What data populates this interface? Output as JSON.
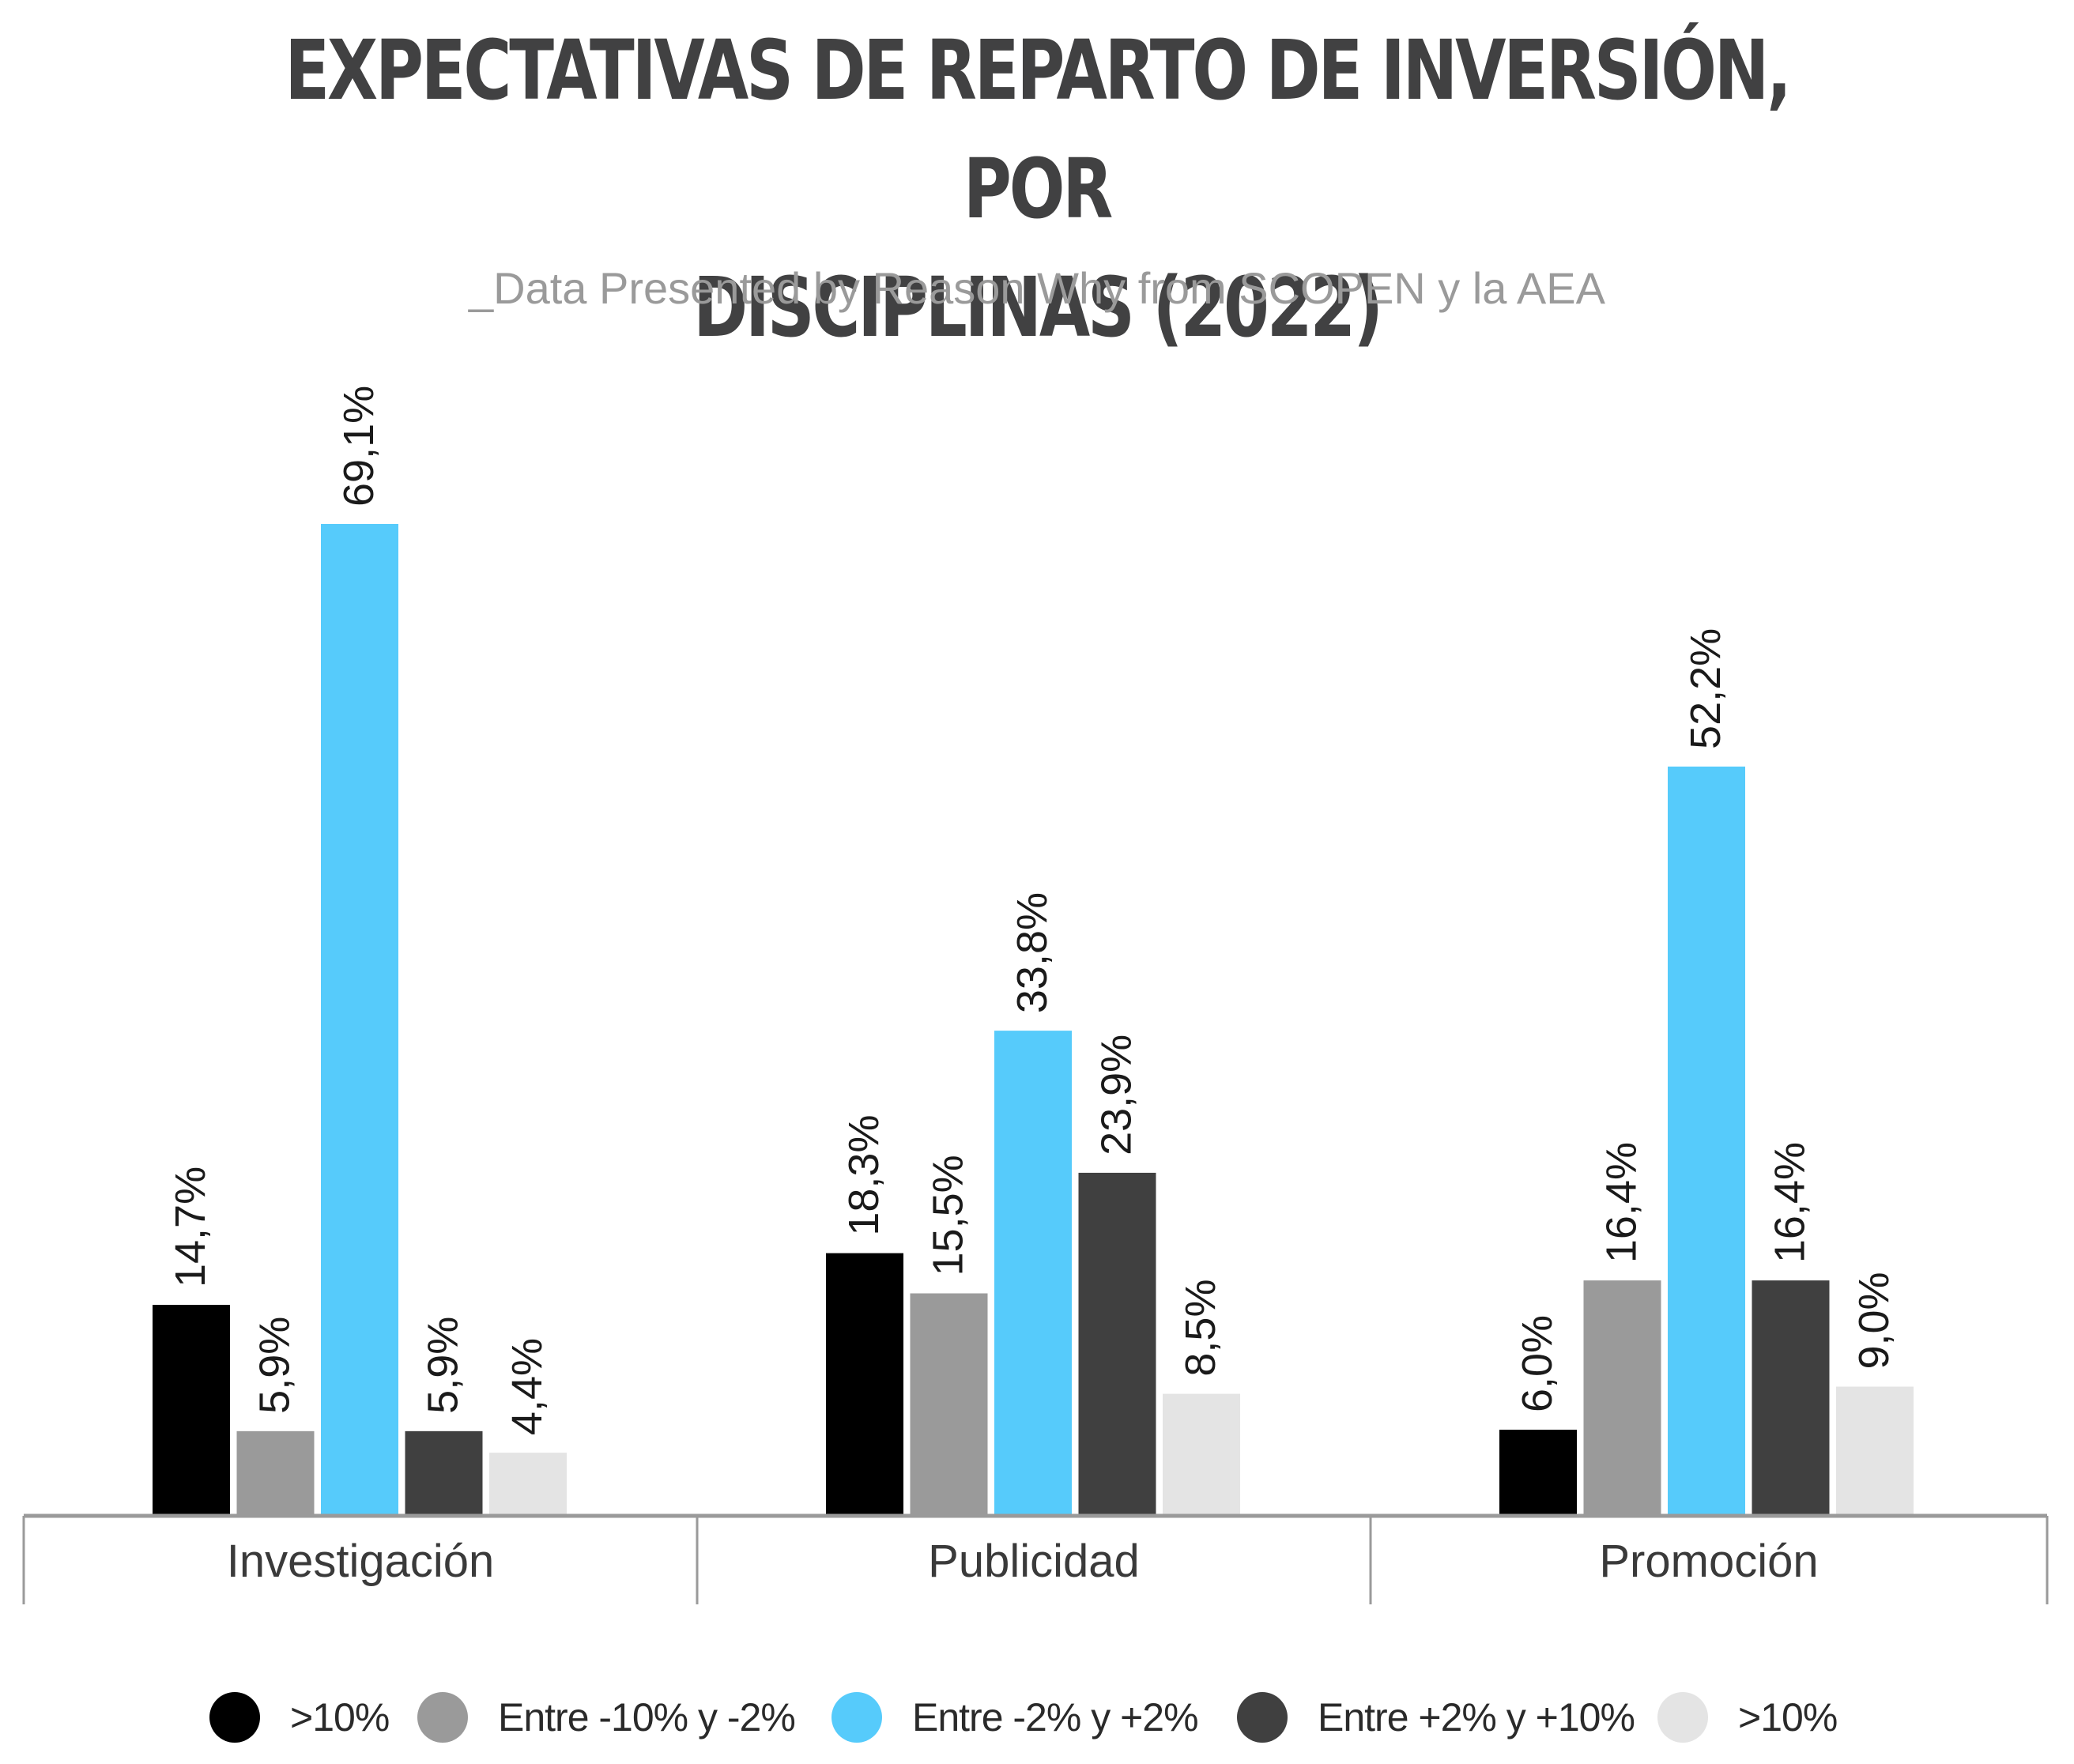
{
  "title_line1": "EXPECTATIVAS DE REPARTO DE INVERSIÓN, POR",
  "title_line2": "DISCIPLINAS (2022)",
  "subtitle": "_Data Presented by Reason Why from SCOPEN y la AEA",
  "chart_data": {
    "type": "bar",
    "title": "EXPECTATIVAS DE REPARTO DE INVERSIÓN, POR DISCIPLINAS (2022)",
    "subtitle": "_Data Presented by Reason Why from SCOPEN y la AEA",
    "categories": [
      "Investigación",
      "Publicidad",
      "Promoción"
    ],
    "series": [
      {
        "name": ">10%",
        "color": "#000000",
        "values": [
          14.7,
          18.3,
          6.0
        ],
        "labels": [
          "14,7%",
          "18,3%",
          "6,0%"
        ]
      },
      {
        "name": "Entre -10% y -2%",
        "color": "#9a9a9a",
        "values": [
          5.9,
          15.5,
          16.4
        ],
        "labels": [
          "5,9%",
          "15,5%",
          "16,4%"
        ]
      },
      {
        "name": "Entre -2% y +2%",
        "color": "#56cbfb",
        "values": [
          69.1,
          33.8,
          52.2
        ],
        "labels": [
          "69,1%",
          "33,8%",
          "52,2%"
        ]
      },
      {
        "name": "Entre +2% y +10%",
        "color": "#404040",
        "values": [
          5.9,
          23.9,
          16.4
        ],
        "labels": [
          "5,9%",
          "23,9%",
          "16,4%"
        ]
      },
      {
        "name": ">10%",
        "color": "#e4e4e4",
        "values": [
          4.4,
          8.5,
          9.0
        ],
        "labels": [
          "4,4%",
          "8,5%",
          "9,0%"
        ]
      }
    ],
    "ylim": [
      0,
      69.1
    ],
    "grid": false,
    "legend": "bottom"
  }
}
